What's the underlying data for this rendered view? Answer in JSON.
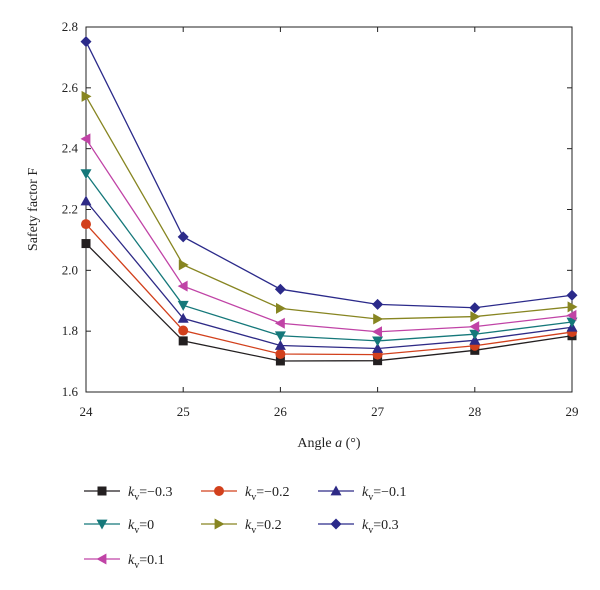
{
  "chart_data": {
    "type": "line",
    "xlabel_parts": [
      "Angle ",
      "a",
      " (°)"
    ],
    "ylabel": "Safety factor F",
    "x": [
      24,
      25,
      26,
      27,
      28,
      29
    ],
    "xlim": [
      24,
      29
    ],
    "ylim": [
      1.6,
      2.8
    ],
    "xticks": [
      "24",
      "25",
      "26",
      "27",
      "28",
      "29"
    ],
    "yticks": [
      "1.6",
      "1.8",
      "2.0",
      "2.2",
      "2.4",
      "2.6",
      "2.8"
    ],
    "grid": false,
    "legend_position": "bottom",
    "series": [
      {
        "label_var": "k",
        "label_sub": "v",
        "label_value": "=−0.3",
        "color": "#231f20",
        "marker": "square",
        "values": [
          2.088,
          1.768,
          1.702,
          1.703,
          1.737,
          1.785
        ]
      },
      {
        "label_var": "k",
        "label_sub": "v",
        "label_value": "=−0.2",
        "color": "#d2401c",
        "marker": "circle",
        "values": [
          2.152,
          1.802,
          1.725,
          1.723,
          1.752,
          1.797
        ]
      },
      {
        "label_var": "k",
        "label_sub": "v",
        "label_value": "=−0.1",
        "color": "#2e2a86",
        "marker": "triangle-up",
        "values": [
          2.228,
          1.842,
          1.753,
          1.743,
          1.77,
          1.813
        ]
      },
      {
        "label_var": "k",
        "label_sub": "v",
        "label_value": "=0",
        "color": "#15787a",
        "marker": "triangle-down",
        "values": [
          2.318,
          1.885,
          1.785,
          1.768,
          1.79,
          1.83
        ]
      },
      {
        "label_var": "k",
        "label_sub": "v",
        "label_value": "=0.2",
        "color": "#878521",
        "marker": "triangle-right",
        "values": [
          2.572,
          2.018,
          1.875,
          1.84,
          1.848,
          1.88
        ]
      },
      {
        "label_var": "k",
        "label_sub": "v",
        "label_value": "=0.3",
        "color": "#2b2a8a",
        "marker": "diamond",
        "values": [
          2.752,
          2.11,
          1.938,
          1.888,
          1.877,
          1.918
        ]
      },
      {
        "label_var": "k",
        "label_sub": "v",
        "label_value": "=0.1",
        "color": "#c043a6",
        "marker": "triangle-left",
        "values": [
          2.432,
          1.948,
          1.826,
          1.798,
          1.815,
          1.852
        ]
      }
    ]
  }
}
